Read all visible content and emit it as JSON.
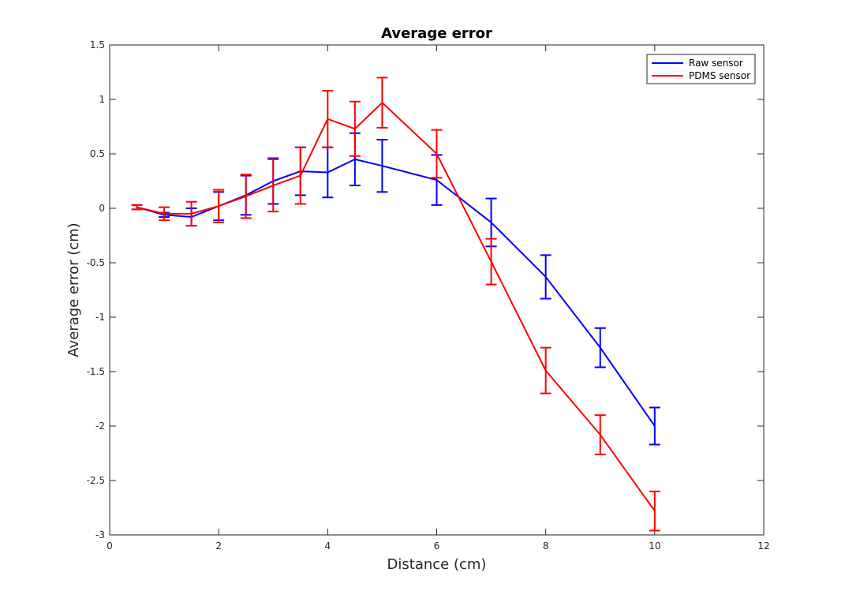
{
  "chart_data": {
    "type": "line",
    "title": "Average error",
    "xlabel": "Distance (cm)",
    "ylabel": "Average error (cm)",
    "xlim": [
      0,
      12
    ],
    "ylim": [
      -3,
      1.5
    ],
    "xticks": [
      0,
      2,
      4,
      6,
      8,
      10,
      12
    ],
    "yticks": [
      -3,
      -2.5,
      -2,
      -1.5,
      -1,
      -0.5,
      0,
      0.5,
      1,
      1.5
    ],
    "xtick_labels": [
      "0",
      "2",
      "4",
      "6",
      "8",
      "10",
      "12"
    ],
    "ytick_labels": [
      "-3",
      "-2.5",
      "-2",
      "-1.5",
      "-1",
      "-0.5",
      "0",
      "0.5",
      "1",
      "1.5"
    ],
    "grid": false,
    "legend_position": "top-right",
    "series": [
      {
        "name": "Raw sensor",
        "color": "#0000ff",
        "x": [
          0.5,
          1,
          1.5,
          2,
          2.5,
          3,
          3.5,
          4,
          4.5,
          5,
          6,
          7,
          8,
          9,
          10
        ],
        "y": [
          0.01,
          -0.06,
          -0.08,
          0.02,
          0.12,
          0.25,
          0.34,
          0.33,
          0.45,
          0.39,
          0.26,
          -0.13,
          -0.63,
          -1.28,
          -2.0
        ],
        "err": [
          0.02,
          0.02,
          0.08,
          0.13,
          0.18,
          0.21,
          0.22,
          0.23,
          0.24,
          0.24,
          0.23,
          0.22,
          0.2,
          0.18,
          0.17
        ]
      },
      {
        "name": "PDMS sensor",
        "color": "#ff0000",
        "x": [
          0.5,
          1,
          1.5,
          2,
          2.5,
          3,
          3.5,
          4,
          4.5,
          5,
          6,
          7,
          8,
          9,
          10
        ],
        "y": [
          0.01,
          -0.05,
          -0.05,
          0.02,
          0.11,
          0.21,
          0.3,
          0.82,
          0.73,
          0.97,
          0.5,
          -0.49,
          -1.49,
          -2.08,
          -2.78
        ],
        "err": [
          0.02,
          0.06,
          0.11,
          0.15,
          0.2,
          0.24,
          0.26,
          0.26,
          0.25,
          0.23,
          0.22,
          0.21,
          0.21,
          0.18,
          0.18
        ]
      }
    ]
  }
}
